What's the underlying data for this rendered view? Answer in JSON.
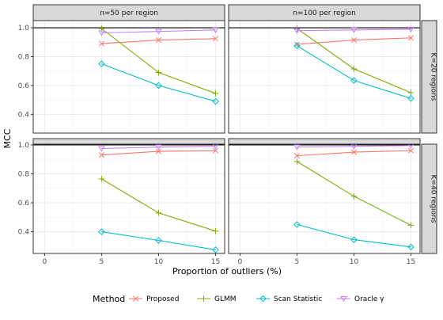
{
  "chart_data": {
    "type": "line",
    "facet_columns": [
      "n=50 per region",
      "n=100 per region"
    ],
    "facet_rows": [
      "K=20 regions",
      "K=40 regions"
    ],
    "xlabel": "Proportion of outliers (%)",
    "ylabel": "MCC",
    "x_ticks": [
      0,
      5,
      10,
      15
    ],
    "xlim": [
      -1,
      15.8
    ],
    "panels_y": [
      {
        "ylim": [
          0.27,
          1.05
        ],
        "y_ticks": [
          0.4,
          0.6,
          0.8,
          1.0
        ],
        "y_tick_labels": [
          "0.4",
          "0.6",
          "0.8",
          "1.0"
        ]
      },
      {
        "ylim": [
          0.25,
          1.005
        ],
        "y_ticks": [
          0.4,
          0.6,
          0.8,
          1.0
        ],
        "y_tick_labels": [
          "0.4",
          "0.6",
          "0.8",
          "1.0"
        ]
      }
    ],
    "reference_line": 1.0,
    "legend": {
      "title": "Method",
      "position": "bottom"
    },
    "series": [
      {
        "name": "Proposed",
        "color": "#F8766D",
        "marker": "cross",
        "x": [
          5,
          10,
          15
        ],
        "values": {
          "r0c0": [
            0.89,
            0.915,
            0.925
          ],
          "r0c1": [
            0.885,
            0.915,
            0.93
          ],
          "r1c0": [
            0.93,
            0.955,
            0.96
          ],
          "r1c1": [
            0.925,
            0.95,
            0.96
          ]
        }
      },
      {
        "name": "GLMM",
        "color": "#7CAE00",
        "marker": "plus",
        "x": [
          5,
          10,
          15
        ],
        "values": {
          "r0c0": [
            0.995,
            0.69,
            0.545
          ],
          "r0c1": [
            0.995,
            0.715,
            0.55
          ],
          "r1c0": [
            0.765,
            0.53,
            0.405
          ],
          "r1c1": [
            0.885,
            0.645,
            0.445
          ]
        }
      },
      {
        "name": "Scan Statistic",
        "color": "#00BFC4",
        "marker": "diamond",
        "x": [
          5,
          10,
          15
        ],
        "values": {
          "r0c0": [
            0.75,
            0.6,
            0.49
          ],
          "r0c1": [
            0.875,
            0.635,
            0.51
          ],
          "r1c0": [
            0.4,
            0.34,
            0.275
          ],
          "r1c1": [
            0.45,
            0.345,
            0.295
          ]
        }
      },
      {
        "name": "Oracle γ",
        "color": "#C77CFF",
        "marker": "triangle-down",
        "x": [
          5,
          10,
          15
        ],
        "values": {
          "r0c0": [
            0.965,
            0.975,
            0.985
          ],
          "r0c1": [
            0.98,
            0.985,
            0.99
          ],
          "r1c0": [
            0.975,
            0.985,
            0.99
          ],
          "r1c1": [
            0.985,
            0.99,
            0.995
          ]
        }
      }
    ]
  }
}
